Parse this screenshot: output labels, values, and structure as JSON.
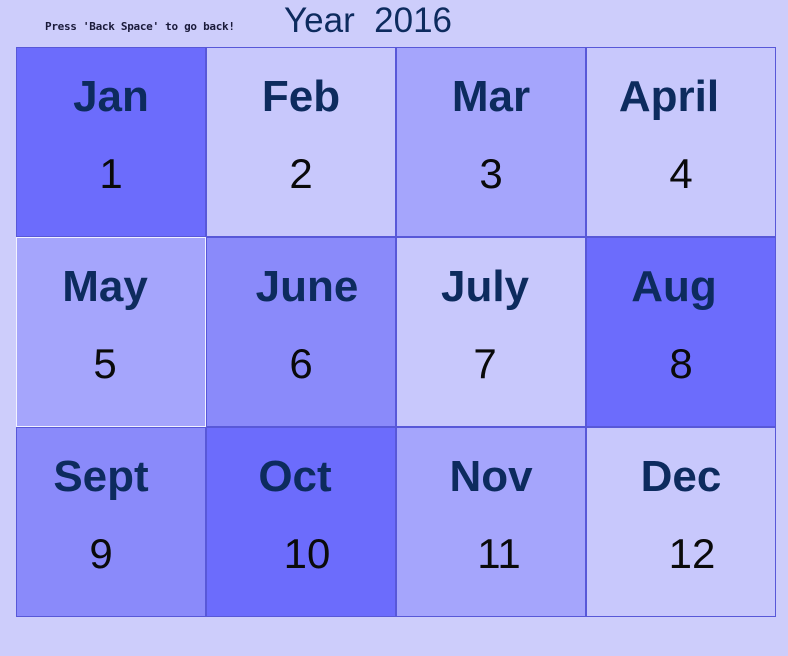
{
  "header": {
    "hint": "Press 'Back Space' to go back!",
    "year_label": "Year  2016"
  },
  "colors": {
    "background": "#cdcdfb",
    "shade_light": "#c8c8fc",
    "shade_mid": "#a5a5fc",
    "shade_strong": "#8a8afa",
    "shade_dark": "#6c6cfc",
    "month_text": "#0d2b5e"
  },
  "months": [
    {
      "name": "Jan",
      "number": "1",
      "shade": "#6c6cfc",
      "selected": false
    },
    {
      "name": "Feb",
      "number": "2",
      "shade": "#c8c8fc",
      "selected": false
    },
    {
      "name": "Mar",
      "number": "3",
      "shade": "#a5a5fc",
      "selected": false
    },
    {
      "name": "April",
      "number": "4",
      "shade": "#c8c8fc",
      "selected": false
    },
    {
      "name": "May",
      "number": "5",
      "shade": "#a5a5fc",
      "selected": true
    },
    {
      "name": "June",
      "number": "6",
      "shade": "#8a8afa",
      "selected": false
    },
    {
      "name": "July",
      "number": "7",
      "shade": "#c8c8fc",
      "selected": false
    },
    {
      "name": "Aug",
      "number": "8",
      "shade": "#6c6cfc",
      "selected": false
    },
    {
      "name": "Sept",
      "number": "9",
      "shade": "#8a8afa",
      "selected": false
    },
    {
      "name": "Oct",
      "number": "10",
      "shade": "#6c6cfc",
      "selected": false
    },
    {
      "name": "Nov",
      "number": "11",
      "shade": "#a5a5fc",
      "selected": false
    },
    {
      "name": "Dec",
      "number": "12",
      "shade": "#c8c8fc",
      "selected": false
    }
  ]
}
